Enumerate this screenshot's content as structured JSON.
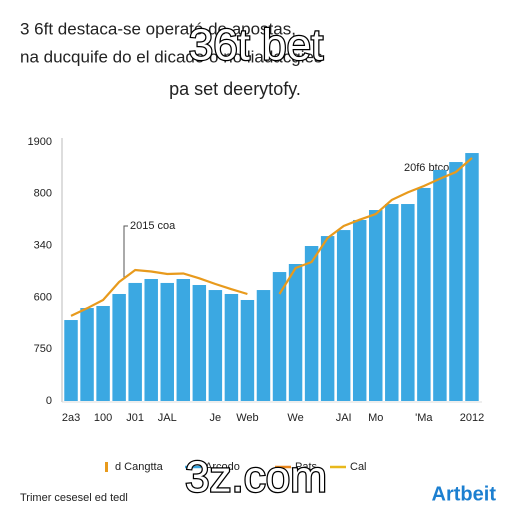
{
  "chart_data": {
    "type": "bar",
    "title": [
      "3 6ft destaca-se operató de apostas,",
      "na ducquife do el dicado o no liadacgies",
      "pa set deerytofy."
    ],
    "watermarks": [
      "36t bet",
      "3z.com"
    ],
    "categories": [
      "2a3",
      null,
      "100",
      null,
      "J01",
      null,
      "JAL",
      null,
      null,
      "Je",
      null,
      "Web",
      null,
      null,
      "We",
      null,
      null,
      "JAI",
      null,
      "Mo",
      null,
      null,
      "'Ma",
      null,
      null,
      "2012"
    ],
    "values": [
      594,
      682,
      697,
      785,
      866,
      895,
      866,
      895,
      851,
      814,
      785,
      741,
      814,
      946,
      1005,
      1137,
      1210,
      1254,
      1328,
      1401,
      1445,
      1445,
      1563,
      1695,
      1753,
      1819
    ],
    "color": "#3ba8e2",
    "line": {
      "color": "#e89a1c",
      "values": [
        624,
        680,
        741,
        873,
        961,
        950,
        932,
        935,
        900,
        858,
        820,
        785,
        null,
        785,
        976,
        1020,
        1196,
        1284,
        1330,
        1372,
        1475,
        1530,
        1577,
        1630,
        1680,
        1783
      ]
    },
    "ylim": [
      0,
      1900
    ],
    "y_axis_labels": [
      "1900",
      "800",
      "340",
      "600",
      "750",
      "0"
    ],
    "annotations": [
      "2015 coa",
      "20f6 btco"
    ],
    "legend": [
      {
        "name": "d Cangtta",
        "color": "#e89a1c"
      },
      {
        "name": "Arcodo",
        "color": "#3ba8e2"
      },
      {
        "name": "Pats",
        "color": "#e8861c"
      },
      {
        "name": "Cal",
        "color": "#e8b81c"
      }
    ],
    "footer": "Trimer cesesel ed tedl",
    "logo": "Artbeit"
  }
}
